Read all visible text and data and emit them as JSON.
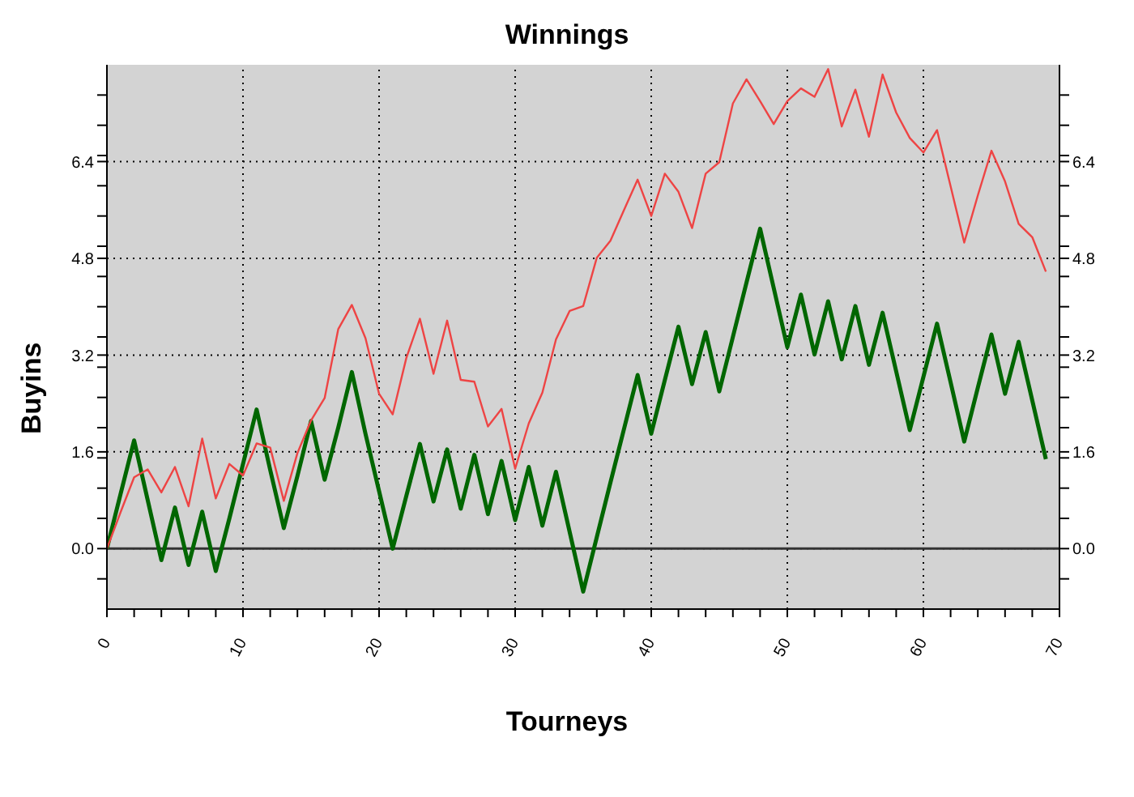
{
  "chart_data": {
    "type": "line",
    "title": "Winnings",
    "xlabel": "Tourneys",
    "ylabel": "Buyins",
    "x": [
      0,
      1,
      2,
      3,
      4,
      5,
      6,
      7,
      8,
      9,
      10,
      11,
      12,
      13,
      14,
      15,
      16,
      17,
      18,
      19,
      20,
      21,
      22,
      23,
      24,
      25,
      26,
      27,
      28,
      29,
      30,
      31,
      32,
      33,
      34,
      35,
      36,
      37,
      38,
      39,
      40,
      41,
      42,
      43,
      44,
      45,
      46,
      47,
      48,
      49,
      50,
      51,
      52,
      53,
      54,
      55,
      56,
      57,
      58,
      59,
      60,
      61,
      62,
      63,
      64,
      65,
      66,
      67,
      68,
      69
    ],
    "series": [
      {
        "color": "#006600",
        "values": [
          0,
          0.9,
          1.79,
          0.8,
          -0.19,
          0.68,
          -0.27,
          0.61,
          -0.37,
          0.5,
          1.4,
          2.3,
          1.3,
          0.34,
          1.2,
          2.11,
          1.14,
          2.0,
          2.92,
          1.9,
          0.95,
          0,
          0.87,
          1.73,
          0.78,
          1.64,
          0.66,
          1.55,
          0.57,
          1.45,
          0.47,
          1.35,
          0.38,
          1.27,
          0.28,
          -0.71,
          0.19,
          1.09,
          1.98,
          2.87,
          1.9,
          2.79,
          3.67,
          2.72,
          3.58,
          2.6,
          3.5,
          4.4,
          5.29,
          4.31,
          3.33,
          4.2,
          3.21,
          4.09,
          3.13,
          4.01,
          3.04,
          3.9,
          2.93,
          1.96,
          2.84,
          3.72,
          2.75,
          1.77,
          2.66,
          3.54,
          2.56,
          3.42,
          2.45,
          1.48
        ]
      },
      {
        "color": "#ee4444",
        "values": [
          0,
          0.6,
          1.18,
          1.31,
          0.93,
          1.35,
          0.7,
          1.82,
          0.83,
          1.4,
          1.21,
          1.74,
          1.67,
          0.79,
          1.58,
          2.12,
          2.49,
          3.63,
          4.03,
          3.48,
          2.56,
          2.22,
          3.15,
          3.8,
          2.89,
          3.77,
          2.79,
          2.76,
          2.02,
          2.31,
          1.32,
          2.07,
          2.58,
          3.46,
          3.93,
          4.01,
          4.81,
          5.09,
          5.6,
          6.1,
          5.5,
          6.2,
          5.9,
          5.3,
          6.2,
          6.39,
          7.36,
          7.76,
          7.4,
          7.02,
          7.4,
          7.61,
          7.47,
          7.93,
          6.98,
          7.59,
          6.81,
          7.84,
          7.21,
          6.79,
          6.55,
          6.92,
          5.99,
          5.06,
          5.84,
          6.58,
          6.07,
          5.37,
          5.15,
          4.58
        ]
      }
    ],
    "xlim": [
      0,
      70
    ],
    "xticks": [
      0,
      {
        "value": 2,
        "label": null
      },
      {
        "value": 4,
        "label": null
      },
      {
        "value": 6,
        "label": null
      },
      {
        "value": 8,
        "label": null
      },
      10,
      {
        "value": 12,
        "label": null
      },
      {
        "value": 14,
        "label": null
      },
      {
        "value": 16,
        "label": null
      },
      {
        "value": 18,
        "label": null
      },
      20,
      {
        "value": 22,
        "label": null
      },
      {
        "value": 24,
        "label": null
      },
      {
        "value": 26,
        "label": null
      },
      {
        "value": 28,
        "label": null
      },
      30,
      {
        "value": 32,
        "label": null
      },
      {
        "value": 34,
        "label": null
      },
      {
        "value": 36,
        "label": null
      },
      {
        "value": 38,
        "label": null
      },
      40,
      {
        "value": 42,
        "label": null
      },
      {
        "value": 44,
        "label": null
      },
      {
        "value": 46,
        "label": null
      },
      {
        "value": 48,
        "label": null
      },
      50,
      {
        "value": 52,
        "label": null
      },
      {
        "value": 54,
        "label": null
      },
      {
        "value": 56,
        "label": null
      },
      {
        "value": 58,
        "label": null
      },
      60,
      {
        "value": 62,
        "label": null
      },
      {
        "value": 64,
        "label": null
      },
      {
        "value": 66,
        "label": null
      },
      {
        "value": 68,
        "label": null
      },
      70
    ],
    "ylim": [
      -1,
      8
    ],
    "yticks": [
      {
        "value": -0.5,
        "label": null
      },
      {
        "value": 0,
        "label": "0.0"
      },
      {
        "value": 0.5,
        "label": null
      },
      {
        "value": 1,
        "label": null
      },
      {
        "value": 1.5,
        "label": null
      },
      1.6,
      {
        "value": 2,
        "label": null
      },
      {
        "value": 2.5,
        "label": null
      },
      {
        "value": 3,
        "label": null
      },
      3.2,
      {
        "value": 3.5,
        "label": null
      },
      {
        "value": 4,
        "label": null
      },
      {
        "value": 4.5,
        "label": null
      },
      4.8,
      {
        "value": 5,
        "label": null
      },
      {
        "value": 5.5,
        "label": null
      },
      {
        "value": 6,
        "label": null
      },
      6.4,
      {
        "value": 6.5,
        "label": null
      },
      {
        "value": 7,
        "label": null
      },
      {
        "value": 7.5,
        "label": null
      }
    ],
    "y2lim": [
      -1,
      8
    ],
    "y2ticks": [
      {
        "value": -0.5,
        "label": null
      },
      {
        "value": 0,
        "label": "0.0"
      },
      {
        "value": 0.5,
        "label": null
      },
      {
        "value": 1,
        "label": null
      },
      {
        "value": 1.5,
        "label": null
      },
      1.6,
      {
        "value": 2,
        "label": null
      },
      {
        "value": 2.5,
        "label": null
      },
      {
        "value": 3,
        "label": null
      },
      3.2,
      {
        "value": 3.5,
        "label": null
      },
      {
        "value": 4,
        "label": null
      },
      {
        "value": 4.5,
        "label": null
      },
      4.8,
      {
        "value": 5,
        "label": null
      },
      {
        "value": 5.5,
        "label": null
      },
      {
        "value": 6,
        "label": null
      },
      6.4,
      {
        "value": 6.5,
        "label": null
      },
      {
        "value": 7,
        "label": null
      },
      {
        "value": 7.5,
        "label": null
      }
    ],
    "ref_lines": [
      {
        "axis": "y",
        "value": 0,
        "color": "#333333",
        "line_style": "solid"
      }
    ],
    "grid": true,
    "legend": false,
    "marker": "none",
    "line_style": "solid"
  }
}
